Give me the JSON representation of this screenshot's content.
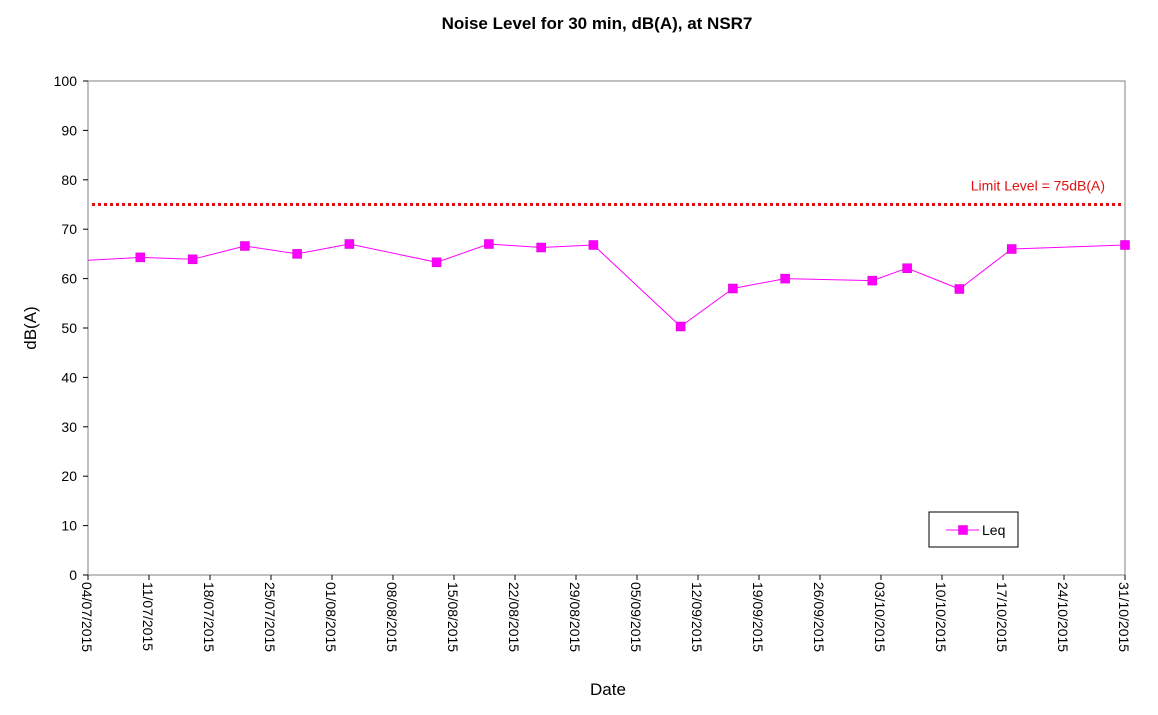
{
  "chart_data": {
    "type": "line",
    "title": "Noise Level for 30 min, dB(A), at NSR7",
    "xlabel": "Date",
    "ylabel": "dB(A)",
    "ylim": [
      0,
      100
    ],
    "y_ticks": [
      0,
      10,
      20,
      30,
      40,
      50,
      60,
      70,
      80,
      90,
      100
    ],
    "xlim": [
      "2015-07-04",
      "2015-10-31"
    ],
    "x_tick_labels": [
      "04/07/2015",
      "11/07/2015",
      "18/07/2015",
      "25/07/2015",
      "01/08/2015",
      "08/08/2015",
      "15/08/2015",
      "22/08/2015",
      "29/08/2015",
      "05/09/2015",
      "12/09/2015",
      "19/09/2015",
      "26/09/2015",
      "03/10/2015",
      "10/10/2015",
      "17/10/2015",
      "24/10/2015",
      "31/10/2015"
    ],
    "x_ticks": [
      "2015-07-04",
      "2015-07-11",
      "2015-07-18",
      "2015-07-25",
      "2015-08-01",
      "2015-08-08",
      "2015-08-15",
      "2015-08-22",
      "2015-08-29",
      "2015-09-05",
      "2015-09-12",
      "2015-09-19",
      "2015-09-26",
      "2015-10-03",
      "2015-10-10",
      "2015-10-17",
      "2015-10-24",
      "2015-10-31"
    ],
    "grid": false,
    "legend": {
      "position": "bottom-right"
    },
    "series": [
      {
        "name": "Leq",
        "color": "#ff00ff",
        "marker": "square",
        "x": [
          "2015-07-10",
          "2015-07-16",
          "2015-07-22",
          "2015-07-28",
          "2015-08-03",
          "2015-08-13",
          "2015-08-19",
          "2015-08-25",
          "2015-08-31",
          "2015-09-10",
          "2015-09-16",
          "2015-09-22",
          "2015-10-02",
          "2015-10-06",
          "2015-10-12",
          "2015-10-18",
          "2015-10-31"
        ],
        "y": [
          64.3,
          63.9,
          66.6,
          65.0,
          67.0,
          63.3,
          67.0,
          66.3,
          66.8,
          50.3,
          58.0,
          60.0,
          59.6,
          62.1,
          57.9,
          66.0,
          66.8
        ]
      }
    ],
    "start_value": 63.7,
    "limit": {
      "value": 75,
      "label": "Limit Level = 75dB(A)",
      "color": "#e01010"
    }
  }
}
